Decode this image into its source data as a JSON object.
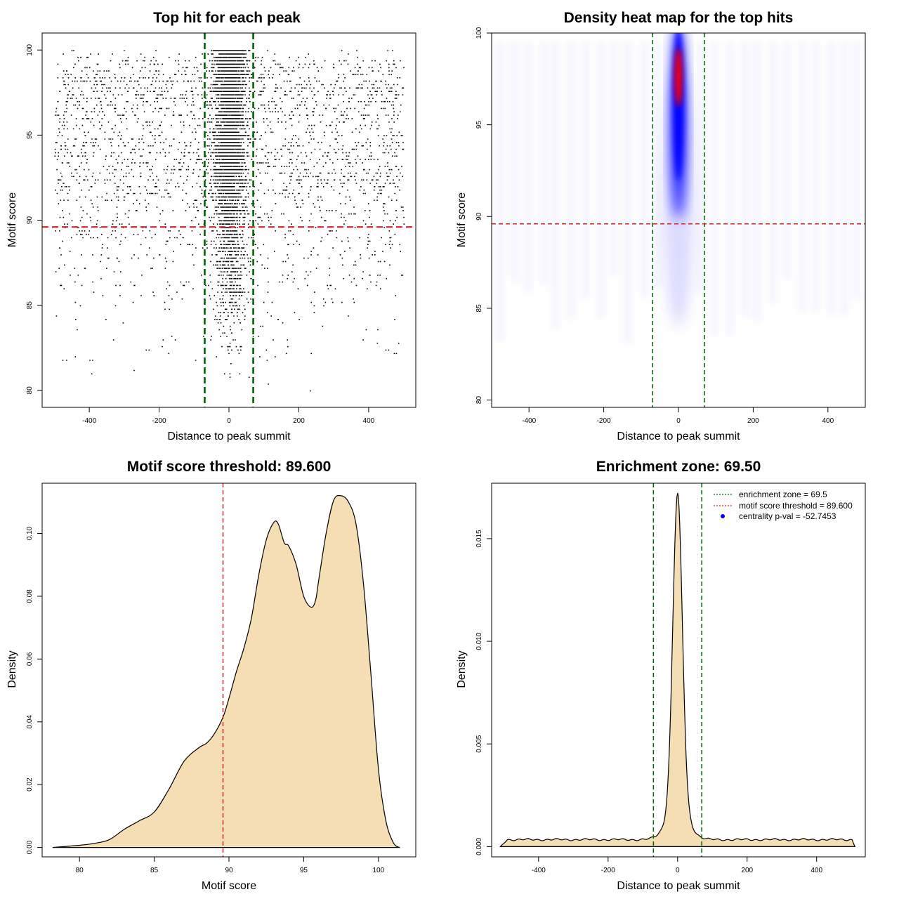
{
  "colors": {
    "fill": "#F5DEB3",
    "green_line": "#006400",
    "red_line": "#CD2626",
    "heat_blue": "#0000FF",
    "heat_red": "#FF0000",
    "points": "#000000"
  },
  "chart_data": [
    {
      "id": "scatter",
      "type": "scatter",
      "title": "Top hit for each peak",
      "xlabel": "Distance to peak summit",
      "ylabel": "Motif score",
      "xlim": [
        -535,
        535
      ],
      "ylim": [
        79,
        101
      ],
      "xticks": [
        -400,
        -200,
        0,
        200,
        400
      ],
      "yticks": [
        80,
        85,
        90,
        95,
        100
      ],
      "xtick_labels": [
        "-400",
        "-200",
        "0",
        "200",
        "400"
      ],
      "ytick_labels": [
        "80",
        "85",
        "90",
        "95",
        "100"
      ],
      "vlines": [
        -69.5,
        69.5
      ],
      "hline": 89.6,
      "point_summary": {
        "background_points_per_panel": 2600,
        "central_points": 4200,
        "central_sd": 22,
        "x_range": [
          -500,
          500
        ],
        "score_range": [
          79.7,
          100
        ]
      }
    },
    {
      "id": "heatmap",
      "type": "heatmap",
      "title": "Density heat map for the top hits",
      "xlabel": "Distance to peak summit",
      "ylabel": "Motif score",
      "xlim": [
        -500,
        500
      ],
      "ylim": [
        79.6,
        100
      ],
      "xticks": [
        -400,
        -200,
        0,
        200,
        400
      ],
      "yticks": [
        80,
        85,
        90,
        95,
        100
      ],
      "xtick_labels": [
        "-400",
        "-200",
        "0",
        "200",
        "400"
      ],
      "ytick_labels": [
        "80",
        "85",
        "90",
        "95",
        "100"
      ],
      "vlines": [
        -69.5,
        69.5
      ],
      "hline": 89.6,
      "hotspot": {
        "x": 0,
        "score_center": 97.6,
        "score_min": 86,
        "score_max": 100
      }
    },
    {
      "id": "score_density",
      "type": "area",
      "title": "Motif score threshold: 89.600",
      "xlabel": "Motif score",
      "ylabel": "Density",
      "xlim": [
        77.5,
        102.5
      ],
      "ylim": [
        -0.003,
        0.116
      ],
      "xticks": [
        80,
        85,
        90,
        95,
        100
      ],
      "yticks": [
        0.0,
        0.02,
        0.04,
        0.06,
        0.08,
        0.1
      ],
      "xtick_labels": [
        "80",
        "85",
        "90",
        "95",
        "100"
      ],
      "ytick_labels": [
        "0.00",
        "0.02",
        "0.04",
        "0.06",
        "0.08",
        "0.10"
      ],
      "vline": 89.6,
      "x": [
        78.2,
        80,
        81,
        82,
        83,
        84,
        85,
        86,
        87,
        88,
        88.5,
        89,
        89.6,
        90,
        90.5,
        91,
        91.5,
        92,
        92.5,
        93,
        93.3,
        93.7,
        94,
        94.5,
        95,
        95.5,
        95.8,
        96,
        96.5,
        97,
        97.5,
        98,
        98.5,
        99,
        99.5,
        100,
        100.5,
        101,
        101.4
      ],
      "y": [
        0.0,
        0.0007,
        0.0013,
        0.0025,
        0.0058,
        0.0085,
        0.0113,
        0.0187,
        0.0275,
        0.0318,
        0.0332,
        0.036,
        0.0415,
        0.0475,
        0.056,
        0.0635,
        0.073,
        0.087,
        0.098,
        0.1035,
        0.103,
        0.097,
        0.096,
        0.09,
        0.08,
        0.0765,
        0.0788,
        0.085,
        0.1,
        0.1105,
        0.112,
        0.11,
        0.103,
        0.084,
        0.055,
        0.025,
        0.0085,
        0.0015,
        0.0
      ]
    },
    {
      "id": "distance_density",
      "type": "area",
      "title": "Enrichment zone: 69.50",
      "xlabel": "Distance to peak summit",
      "ylabel": "Density",
      "xlim": [
        -535,
        540
      ],
      "ylim": [
        -0.0005,
        0.0177
      ],
      "xticks": [
        -400,
        -200,
        0,
        200,
        400
      ],
      "yticks": [
        0.0,
        0.005,
        0.01,
        0.015
      ],
      "xtick_labels": [
        "-400",
        "-200",
        "0",
        "200",
        "400"
      ],
      "ytick_labels": [
        "0.000",
        "0.005",
        "0.010",
        "0.015"
      ],
      "vlines": [
        -69.5,
        69.5
      ],
      "baseline_density": 0.00034,
      "x_range": [
        -510,
        510
      ],
      "peak": {
        "x": 0,
        "density": 0.0172,
        "sd": 13.5,
        "shoulder_density": 0.0016,
        "shoulder_sd": 30
      },
      "legend": {
        "position": "top-right",
        "entries": [
          {
            "label": "enrichment zone = 69.5",
            "style": "dotted-green"
          },
          {
            "label": "motif score threshold = 89.600",
            "style": "dotted-red"
          },
          {
            "label": "centrality p-val = -52.7453",
            "style": "blue-point"
          }
        ]
      }
    }
  ]
}
